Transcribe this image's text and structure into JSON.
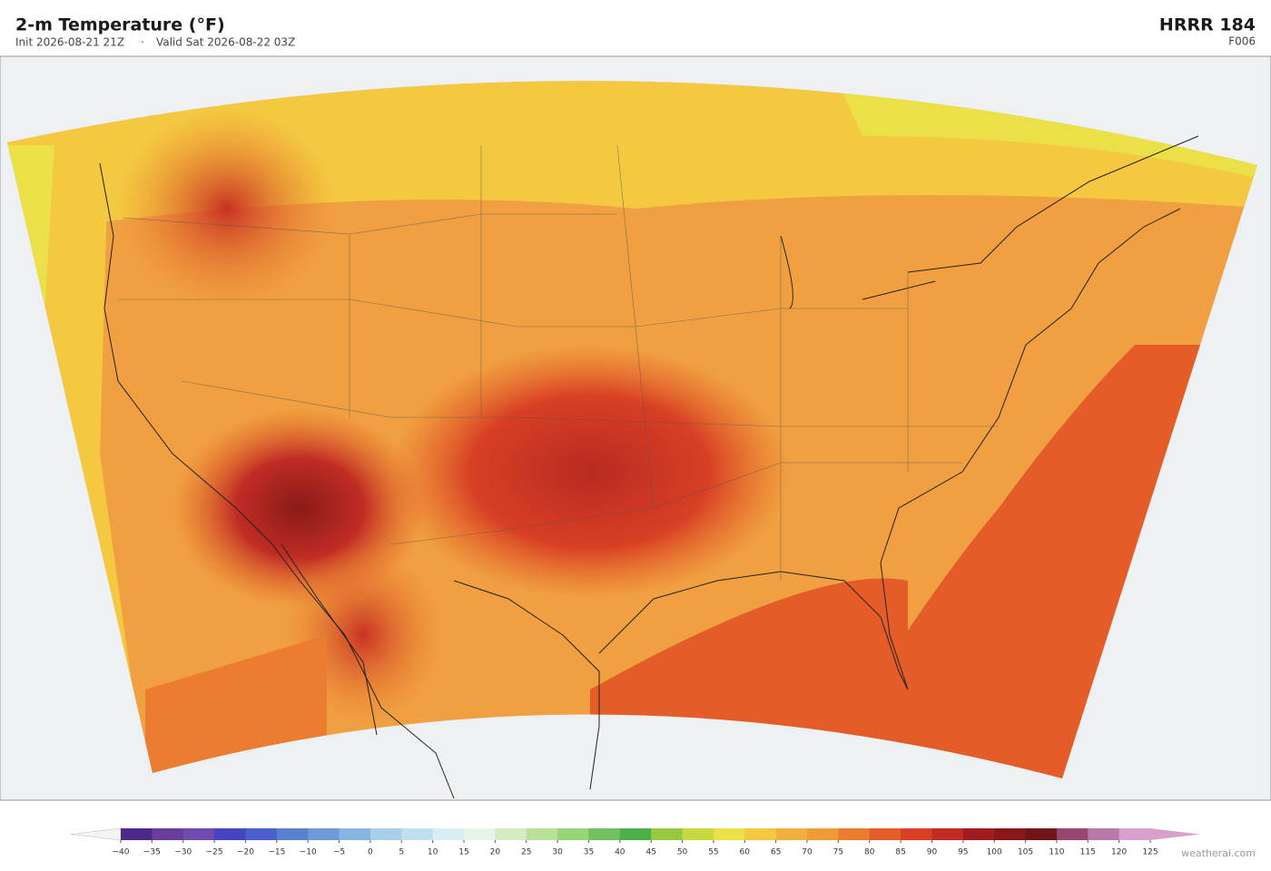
{
  "header": {
    "title": "2-m Temperature  (°F)",
    "init": "Init 2026-08-21 21Z",
    "separator": "·",
    "valid": "Valid Sat 2026-08-22 03Z",
    "model": "HRRR  184",
    "forecast_hour": "F006"
  },
  "colorbar": {
    "ticks": [
      {
        "value": -40,
        "label": "−40"
      },
      {
        "value": -35,
        "label": "−35"
      },
      {
        "value": -30,
        "label": "−30"
      },
      {
        "value": -25,
        "label": "−25"
      },
      {
        "value": -20,
        "label": "−20"
      },
      {
        "value": -15,
        "label": "−15"
      },
      {
        "value": -10,
        "label": "−10"
      },
      {
        "value": -5,
        "label": "−5"
      },
      0,
      5,
      10,
      15,
      20,
      25,
      30,
      35,
      40,
      45,
      50,
      55,
      60,
      65,
      70,
      75,
      80,
      85,
      90,
      95,
      100,
      105,
      110,
      115,
      120,
      125
    ],
    "colors": [
      "#4b2a8c",
      "#6a3d9a",
      "#6f4bb0",
      "#4645c0",
      "#4a5fc8",
      "#5a80d0",
      "#6f9ad8",
      "#88b4e0",
      "#a8d0e8",
      "#c0e0ee",
      "#d8eef2",
      "#e6f5e8",
      "#d6ecc0",
      "#b8e098",
      "#98d478",
      "#72c060",
      "#4cb048",
      "#98c840",
      "#c8d840",
      "#ece048",
      "#f4c840",
      "#f2b040",
      "#f09a38",
      "#ec7c30",
      "#e45c28",
      "#d84024",
      "#c02c24",
      "#a01c20",
      "#881818",
      "#701418",
      "#984870",
      "#b878a8",
      "#d8a0cc"
    ],
    "under_color": "#f4f4f4",
    "over_color": "#d8a0cc"
  },
  "footer": {
    "credit": "weatherai.com"
  }
}
